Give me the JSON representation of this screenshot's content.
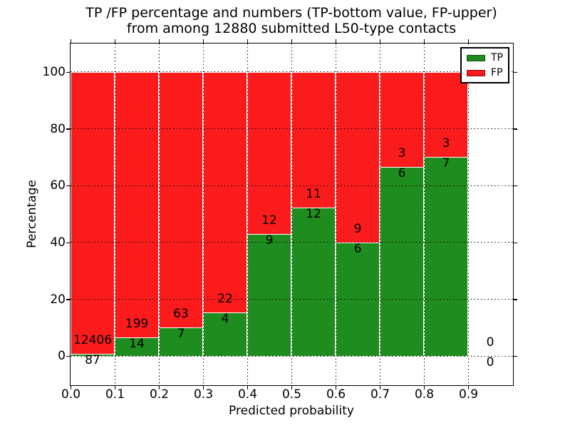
{
  "chart_data": {
    "type": "bar",
    "stacked": true,
    "unit": "percent",
    "title_line1": "TP /FP percentage and numbers (TP-bottom value, FP-upper)",
    "title_line2": "from among 12880 submitted L50-type contacts",
    "total_submitted": "12880",
    "xlabel": "Predicted probability",
    "ylabel": "Percentage",
    "xlim": [
      0,
      1.0
    ],
    "ylim": [
      -10,
      110
    ],
    "grid": true,
    "legend_position": "upper right",
    "series": [
      {
        "name": "TP",
        "color": "#1e8c1e",
        "position": "bottom"
      },
      {
        "name": "FP",
        "color": "#fa1c1c",
        "position": "upper"
      }
    ],
    "x_ticks": [
      {
        "value": 0.0,
        "label": "0.0"
      },
      {
        "value": 0.1,
        "label": "0.1"
      },
      {
        "value": 0.2,
        "label": "0.2"
      },
      {
        "value": 0.3,
        "label": "0.3"
      },
      {
        "value": 0.4,
        "label": "0.4"
      },
      {
        "value": 0.5,
        "label": "0.5"
      },
      {
        "value": 0.6,
        "label": "0.6"
      },
      {
        "value": 0.7,
        "label": "0.7"
      },
      {
        "value": 0.8,
        "label": "0.8"
      },
      {
        "value": 0.9,
        "label": "0.9"
      }
    ],
    "y_ticks": [
      {
        "value": 0,
        "label": "0"
      },
      {
        "value": 20,
        "label": "20"
      },
      {
        "value": 40,
        "label": "40"
      },
      {
        "value": 60,
        "label": "60"
      },
      {
        "value": 80,
        "label": "80"
      },
      {
        "value": 100,
        "label": "100"
      }
    ],
    "bins": [
      {
        "range": [
          0.0,
          0.1
        ],
        "tp": 87,
        "fp": 12406
      },
      {
        "range": [
          0.1,
          0.2
        ],
        "tp": 14,
        "fp": 199
      },
      {
        "range": [
          0.2,
          0.3
        ],
        "tp": 7,
        "fp": 63
      },
      {
        "range": [
          0.3,
          0.4
        ],
        "tp": 4,
        "fp": 22
      },
      {
        "range": [
          0.4,
          0.5
        ],
        "tp": 9,
        "fp": 12
      },
      {
        "range": [
          0.5,
          0.6
        ],
        "tp": 12,
        "fp": 11
      },
      {
        "range": [
          0.6,
          0.7
        ],
        "tp": 6,
        "fp": 9
      },
      {
        "range": [
          0.7,
          0.8
        ],
        "tp": 6,
        "fp": 3
      },
      {
        "range": [
          0.8,
          0.9
        ],
        "tp": 7,
        "fp": 3
      },
      {
        "range": [
          0.9,
          1.0
        ],
        "tp": 0,
        "fp": 0
      }
    ]
  }
}
